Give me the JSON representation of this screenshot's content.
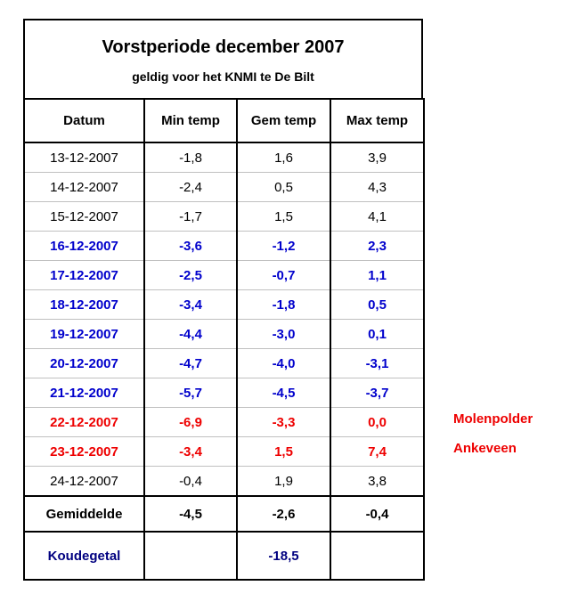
{
  "title": "Vorstperiode december 2007",
  "subtitle": "geldig voor het KNMI te De Bilt",
  "headers": [
    "Datum",
    "Min temp",
    "Gem temp",
    "Max temp"
  ],
  "rows": [
    {
      "datum": "13-12-2007",
      "min": "-1,8",
      "gem": "1,6",
      "max": "3,9",
      "style": "normal",
      "note": ""
    },
    {
      "datum": "14-12-2007",
      "min": "-2,4",
      "gem": "0,5",
      "max": "4,3",
      "style": "normal",
      "note": ""
    },
    {
      "datum": "15-12-2007",
      "min": "-1,7",
      "gem": "1,5",
      "max": "4,1",
      "style": "normal",
      "note": ""
    },
    {
      "datum": "16-12-2007",
      "min": "-3,6",
      "gem": "-1,2",
      "max": "2,3",
      "style": "blue",
      "note": ""
    },
    {
      "datum": "17-12-2007",
      "min": "-2,5",
      "gem": "-0,7",
      "max": "1,1",
      "style": "blue",
      "note": ""
    },
    {
      "datum": "18-12-2007",
      "min": "-3,4",
      "gem": "-1,8",
      "max": "0,5",
      "style": "blue",
      "note": ""
    },
    {
      "datum": "19-12-2007",
      "min": "-4,4",
      "gem": "-3,0",
      "max": "0,1",
      "style": "blue",
      "note": ""
    },
    {
      "datum": "20-12-2007",
      "min": "-4,7",
      "gem": "-4,0",
      "max": "-3,1",
      "style": "blue",
      "note": ""
    },
    {
      "datum": "21-12-2007",
      "min": "-5,7",
      "gem": "-4,5",
      "max": "-3,7",
      "style": "blue",
      "note": ""
    },
    {
      "datum": "22-12-2007",
      "min": "-6,9",
      "gem": "-3,3",
      "max": "0,0",
      "style": "red",
      "note": "Molenpolder"
    },
    {
      "datum": "23-12-2007",
      "min": "-3,4",
      "gem": "1,5",
      "max": "7,4",
      "style": "red",
      "note": "Ankeveen"
    },
    {
      "datum": "24-12-2007",
      "min": "-0,4",
      "gem": "1,9",
      "max": "3,8",
      "style": "normal",
      "note": ""
    }
  ],
  "average": {
    "label": "Gemiddelde",
    "min": "-4,5",
    "gem": "-2,6",
    "max": "-0,4"
  },
  "koudegetal": {
    "label": "Koudegetal",
    "min": "",
    "gem": "-18,5",
    "max": ""
  },
  "colors": {
    "blue": "#0000cc",
    "red": "#ee0000",
    "navy": "#000080"
  }
}
